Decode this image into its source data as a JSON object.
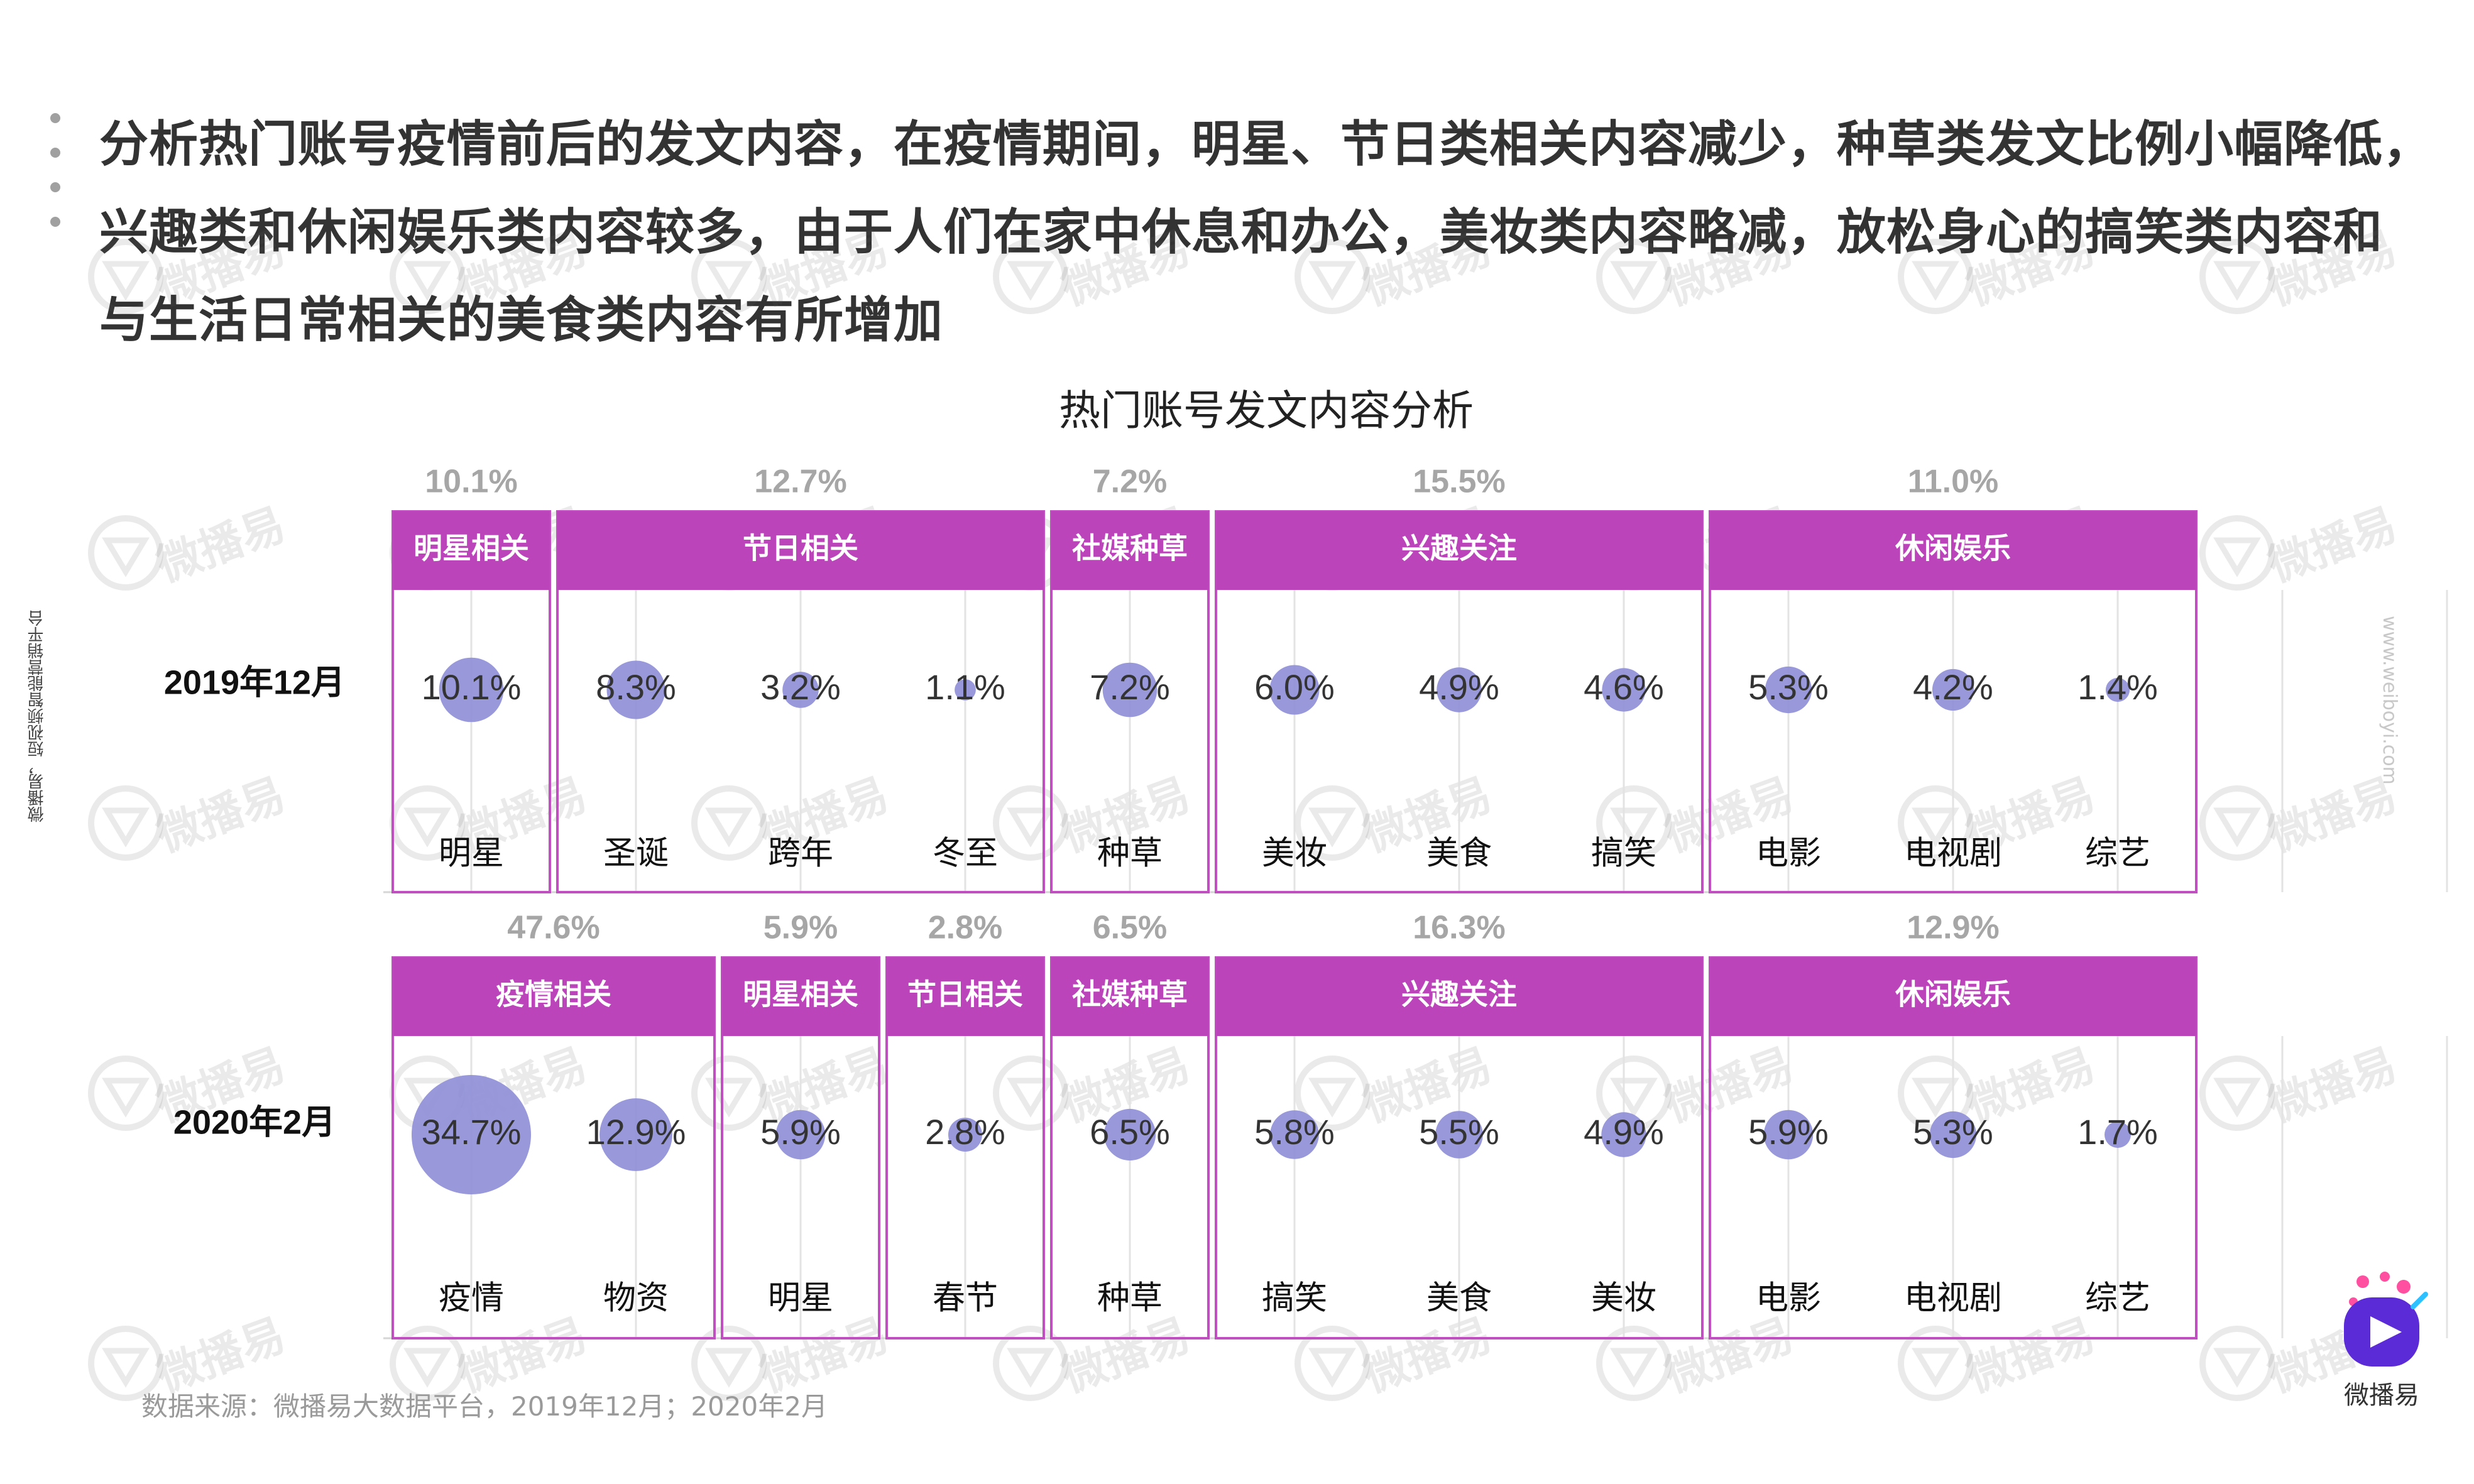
{
  "headline": {
    "lines": [
      "分析热门账号疫情前后的发文内容，在疫情期间，明星、节日类相关内容减少，种草类发文比例小幅降低，",
      "兴趣类和休闲娱乐类内容较多，由于人们在家中休息和办公，美妆类内容略减，放松身心的搞笑类内容和",
      "与生活日常相关的美食类内容有所增加"
    ]
  },
  "side_brand_text": "微播易，短视频智能营销平台",
  "url_text": "www.weiboyi.com",
  "watermark_text": "微播易",
  "source_text": "数据来源：微播易大数据平台，2019年12月；2020年2月",
  "logo_text": "微播易",
  "colors": {
    "header": "#bb44bb",
    "border": "#c050c0",
    "bubble": "#8f8fd8",
    "total": "#a6a6a6",
    "logo": "#7b2ff7"
  },
  "chart_data": {
    "type": "bubble-table",
    "title": "热门账号发文内容分析",
    "rows": [
      {
        "label": "2019年12月",
        "groups": [
          {
            "name": "明星相关",
            "total": "10.1%",
            "items": [
              {
                "label": "明星",
                "value": 10.1,
                "text": "10.1%"
              }
            ]
          },
          {
            "name": "节日相关",
            "total": "12.7%",
            "items": [
              {
                "label": "圣诞",
                "value": 8.3,
                "text": "8.3%"
              },
              {
                "label": "跨年",
                "value": 3.2,
                "text": "3.2%"
              },
              {
                "label": "冬至",
                "value": 1.1,
                "text": "1.1%"
              }
            ]
          },
          {
            "name": "社媒种草",
            "total": "7.2%",
            "items": [
              {
                "label": "种草",
                "value": 7.2,
                "text": "7.2%"
              }
            ]
          },
          {
            "name": "兴趣关注",
            "total": "15.5%",
            "items": [
              {
                "label": "美妆",
                "value": 6.0,
                "text": "6.0%"
              },
              {
                "label": "美食",
                "value": 4.9,
                "text": "4.9%"
              },
              {
                "label": "搞笑",
                "value": 4.6,
                "text": "4.6%"
              }
            ]
          },
          {
            "name": "休闲娱乐",
            "total": "11.0%",
            "items": [
              {
                "label": "电影",
                "value": 5.3,
                "text": "5.3%"
              },
              {
                "label": "电视剧",
                "value": 4.2,
                "text": "4.2%"
              },
              {
                "label": "综艺",
                "value": 1.4,
                "text": "1.4%"
              }
            ]
          }
        ]
      },
      {
        "label": "2020年2月",
        "groups": [
          {
            "name": "疫情相关",
            "total": "47.6%",
            "items": [
              {
                "label": "疫情",
                "value": 34.7,
                "text": "34.7%"
              },
              {
                "label": "物资",
                "value": 12.9,
                "text": "12.9%"
              }
            ]
          },
          {
            "name": "明星相关",
            "total": "5.9%",
            "items": [
              {
                "label": "明星",
                "value": 5.9,
                "text": "5.9%"
              }
            ]
          },
          {
            "name": "节日相关",
            "total": "2.8%",
            "items": [
              {
                "label": "春节",
                "value": 2.8,
                "text": "2.8%"
              }
            ]
          },
          {
            "name": "社媒种草",
            "total": "6.5%",
            "items": [
              {
                "label": "种草",
                "value": 6.5,
                "text": "6.5%"
              }
            ]
          },
          {
            "name": "兴趣关注",
            "total": "16.3%",
            "items": [
              {
                "label": "搞笑",
                "value": 5.8,
                "text": "5.8%"
              },
              {
                "label": "美食",
                "value": 5.5,
                "text": "5.5%"
              },
              {
                "label": "美妆",
                "value": 4.9,
                "text": "4.9%"
              }
            ]
          },
          {
            "name": "休闲娱乐",
            "total": "12.9%",
            "items": [
              {
                "label": "电影",
                "value": 5.9,
                "text": "5.9%"
              },
              {
                "label": "电视剧",
                "value": 5.3,
                "text": "5.3%"
              },
              {
                "label": "综艺",
                "value": 1.7,
                "text": "1.7%"
              }
            ]
          }
        ]
      }
    ]
  }
}
